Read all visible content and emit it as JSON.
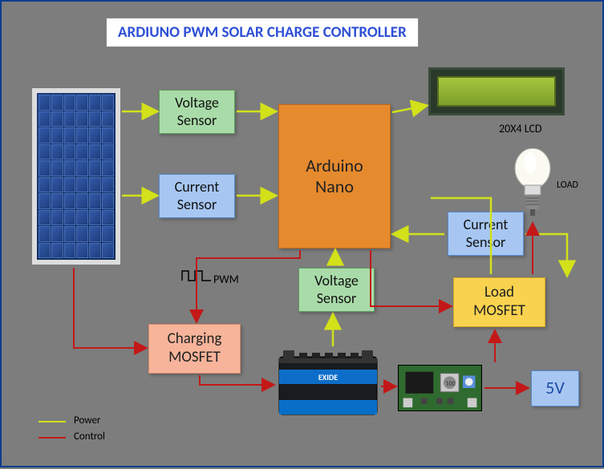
{
  "colors": {
    "bg": "#7d7d7d",
    "border": "#0d3d8f",
    "title_text": "#2d4fd6",
    "arduino_fill": "#e68a2e",
    "arduino_border": "#c56814",
    "voltage_sensor_fill": "#a9dba9",
    "voltage_sensor_border": "#5f9e5f",
    "current_sensor_fill": "#a7c7f2",
    "current_sensor_border": "#5a8bcf",
    "charging_mosfet_fill": "#f7b49b",
    "charging_mosfet_border": "#d8876a",
    "load_mosfet_fill": "#f9d24f",
    "load_mosfet_border": "#d6a821",
    "fivev_fill": "#a7c7f2",
    "fivev_border": "#5a8bcf",
    "power_line": "#d2e11a",
    "control_line": "#c41818"
  },
  "title": "ARDIUNO PWM SOLAR CHARGE CONTROLLER",
  "nodes": {
    "arduino": "Arduino\nNano",
    "voltage_sensor_top": "Voltage\nSensor",
    "voltage_sensor_bottom": "Voltage\nSensor",
    "current_sensor_left": "Current\nSensor",
    "current_sensor_right": "Current\nSensor",
    "charging_mosfet": "Charging\nMOSFET",
    "load_mosfet": "Load\nMOSFET",
    "fivev": "5V"
  },
  "labels": {
    "lcd": "20X4 LCD",
    "load": "LOAD",
    "pwm": "PWM"
  },
  "legend": {
    "power": "Power",
    "control": "Control"
  }
}
